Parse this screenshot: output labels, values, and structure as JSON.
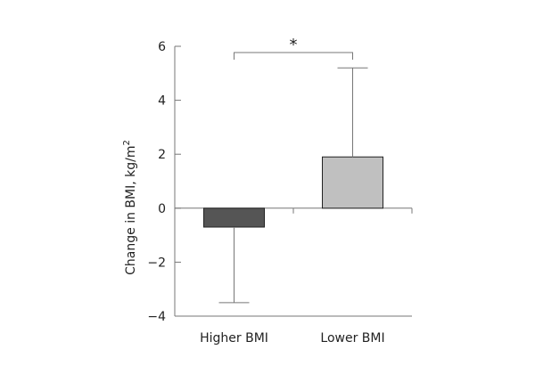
{
  "chart_data": {
    "type": "bar",
    "title": "",
    "ylabel_main": "Change in BMI, kg/m",
    "ylabel_sup": "2",
    "xlabel": "",
    "categories": [
      "Higher BMI",
      "Lower BMI"
    ],
    "series": [
      {
        "values": [
          -0.7,
          1.9
        ],
        "errors": [
          2.8,
          3.3
        ]
      }
    ],
    "bar_colors": [
      "#555555",
      "#c0c0c0"
    ],
    "ylim": [
      -4,
      6
    ],
    "yticks": [
      6,
      4,
      2,
      0,
      -2,
      -4
    ],
    "ytick_labels": [
      "6",
      "4",
      "2",
      "0",
      "−2",
      "−4"
    ],
    "grid": false,
    "significance": {
      "between": [
        0,
        1
      ],
      "label": "*"
    }
  }
}
